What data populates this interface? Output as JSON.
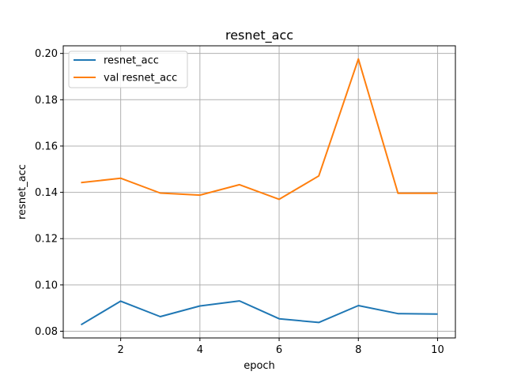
{
  "chart_data": {
    "type": "line",
    "title": "resnet_acc",
    "xlabel": "epoch",
    "ylabel": "resnet_acc",
    "x": [
      1,
      2,
      3,
      4,
      5,
      6,
      7,
      8,
      9,
      10
    ],
    "series": [
      {
        "name": "resnet_acc",
        "color": "#1f77b4",
        "values": [
          0.0828,
          0.093,
          0.0863,
          0.0909,
          0.0931,
          0.0854,
          0.0838,
          0.0911,
          0.0876,
          0.0874
        ]
      },
      {
        "name": "val resnet_acc",
        "color": "#ff7f0e",
        "values": [
          0.1442,
          0.1461,
          0.1397,
          0.1388,
          0.1433,
          0.137,
          0.1471,
          0.1976,
          0.1396,
          0.1396
        ]
      }
    ],
    "xlim": [
      0.55,
      10.45
    ],
    "ylim": [
      0.0771,
      0.2033
    ],
    "xticks": [
      2,
      4,
      6,
      8,
      10
    ],
    "xtick_labels": [
      "2",
      "4",
      "6",
      "8",
      "10"
    ],
    "yticks": [
      0.08,
      0.1,
      0.12,
      0.14,
      0.16,
      0.18,
      0.2
    ],
    "ytick_labels": [
      "0.08",
      "0.10",
      "0.12",
      "0.14",
      "0.16",
      "0.18",
      "0.20"
    ],
    "grid": true,
    "legend_position": "top-left"
  }
}
